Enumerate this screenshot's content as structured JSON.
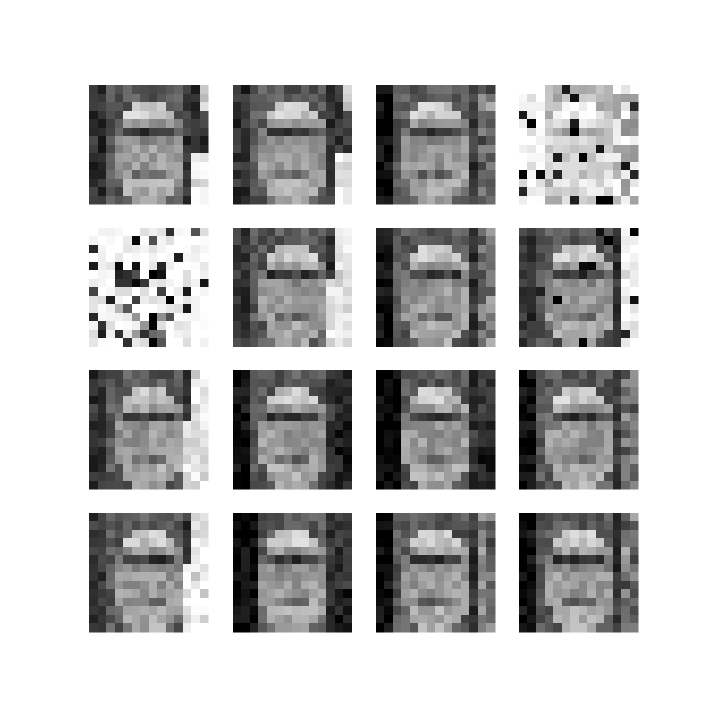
{
  "grid": {
    "rows": 4,
    "cols": 4,
    "pixels_per_image": 14,
    "colormap": "grayscale",
    "background": "#ffffff"
  },
  "images": [
    {
      "variant": "face-dark-both-sides-light-lower-right"
    },
    {
      "variant": "face-dark-both-sides-light-lower-right"
    },
    {
      "variant": "face-dark-left-bar"
    },
    {
      "variant": "face-washed-out-speckled"
    },
    {
      "variant": "face-mostly-white-sparse"
    },
    {
      "variant": "face-light-right"
    },
    {
      "variant": "face-dark-left-bar"
    },
    {
      "variant": "face-light-right-speckled"
    },
    {
      "variant": "face-light-right"
    },
    {
      "variant": "face-dark-both-sides"
    },
    {
      "variant": "face-dark-left-bar-strong"
    },
    {
      "variant": "face-dark-left-bar"
    },
    {
      "variant": "face-light-right"
    },
    {
      "variant": "face-dark-left-bar-strong"
    },
    {
      "variant": "face-dark-left-bar"
    },
    {
      "variant": "face-dark-left-bar"
    }
  ]
}
